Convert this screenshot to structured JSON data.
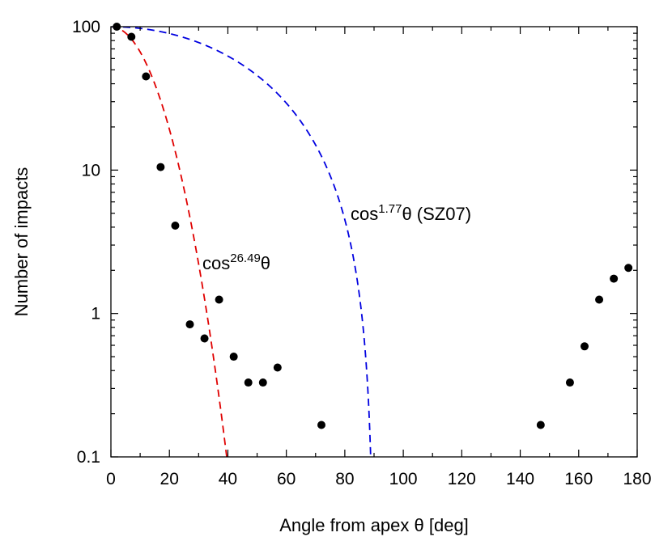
{
  "chart_data": {
    "type": "scatter",
    "xlabel": "Angle from apex θ [deg]",
    "ylabel": "Number of impacts",
    "xlim": [
      0,
      180
    ],
    "ylim": [
      0.1,
      100
    ],
    "yscale": "log",
    "grid": false,
    "x_ticks": [
      "0",
      "20",
      "40",
      "60",
      "80",
      "100",
      "120",
      "140",
      "160",
      "180"
    ],
    "y_ticks": [
      "0.1",
      "1",
      "10",
      "100"
    ],
    "points": {
      "x": [
        2,
        7,
        12,
        17,
        22,
        27,
        32,
        37,
        42,
        47,
        52,
        57,
        72,
        147,
        157,
        162,
        167,
        172,
        177
      ],
      "y": [
        100,
        85,
        45,
        10.5,
        4.1,
        0.84,
        0.67,
        1.25,
        0.5,
        0.33,
        0.33,
        0.42,
        0.167,
        0.167,
        0.33,
        0.59,
        1.25,
        1.75,
        2.08
      ],
      "color": "#000000"
    },
    "curves": [
      {
        "exponent": 26.49,
        "amplitude": 100,
        "color": "#e00000",
        "style": "dashed"
      },
      {
        "exponent": 1.77,
        "amplitude": 100,
        "color": "#0000e0",
        "style": "dashed"
      }
    ],
    "annotations": [
      {
        "base": "cos",
        "sup": "26.49",
        "tail": "θ"
      },
      {
        "base": "cos",
        "sup": "1.77",
        "tail": "θ (SZ07)"
      }
    ]
  }
}
